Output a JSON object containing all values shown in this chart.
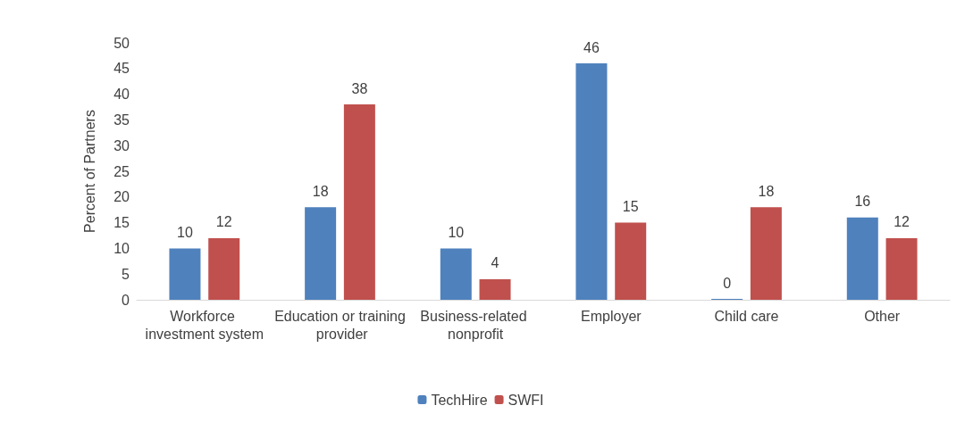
{
  "chart_data": {
    "type": "bar",
    "ylabel": "Percent of Partners",
    "categories": [
      "Workforce investment system",
      "Education or training provider",
      "Business-related nonprofit",
      "Employer",
      "Child care",
      "Other"
    ],
    "series": [
      {
        "name": "TechHire",
        "color": "#4f81bd",
        "values": [
          10,
          18,
          10,
          46,
          0,
          16
        ]
      },
      {
        "name": "SWFI",
        "color": "#c0504d",
        "values": [
          12,
          38,
          4,
          15,
          18,
          12
        ]
      }
    ],
    "ylim": [
      0,
      50
    ],
    "yticks": [
      0,
      5,
      10,
      15,
      20,
      25,
      30,
      35,
      40,
      45,
      50
    ],
    "grid": false,
    "legend": "bottom",
    "data_labels": true
  }
}
